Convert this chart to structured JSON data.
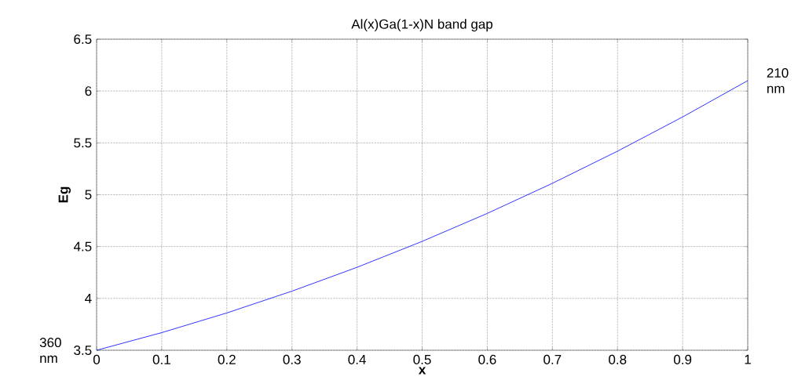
{
  "chart_data": {
    "type": "line",
    "title": "Al(x)Ga(1-x)N band gap",
    "xlabel": "x",
    "ylabel": "Eg",
    "x": [
      0,
      0.1,
      0.2,
      0.3,
      0.4,
      0.5,
      0.6,
      0.7,
      0.8,
      0.9,
      1
    ],
    "series": [
      {
        "color": "#0000ff",
        "values": [
          3.5,
          3.67,
          3.86,
          4.07,
          4.3,
          4.55,
          4.82,
          5.11,
          5.42,
          5.75,
          6.1
        ]
      }
    ],
    "xlim": [
      0,
      1
    ],
    "ylim": [
      3.5,
      6.5
    ],
    "xticks": [
      0,
      0.1,
      0.2,
      0.3,
      0.4,
      0.5,
      0.6,
      0.7,
      0.8,
      0.9,
      1
    ],
    "yticks": [
      3.5,
      4,
      4.5,
      5,
      5.5,
      6,
      6.5
    ],
    "grid": true,
    "marker": "none",
    "line_style": "solid",
    "annotations": [
      {
        "text": "360 nm",
        "x": 0,
        "y": 3.5
      },
      {
        "text": "210 nm",
        "x": 1,
        "y": 6.1
      }
    ]
  }
}
